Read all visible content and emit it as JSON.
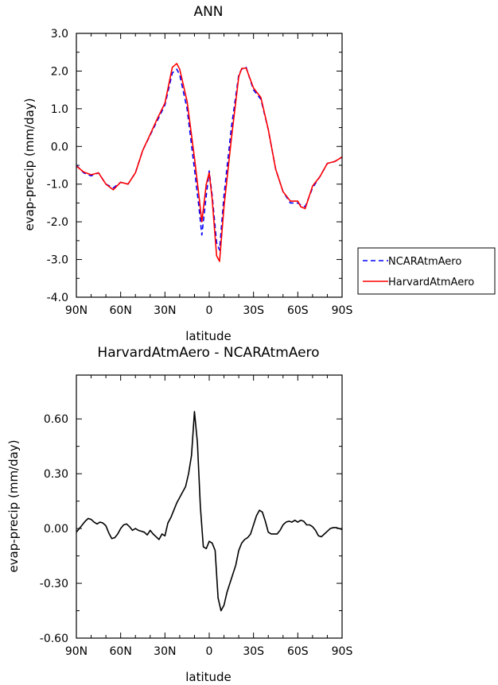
{
  "chart_data": [
    {
      "type": "line",
      "title": "ANN",
      "xlabel": "latitude",
      "ylabel": "evap-precip (mm/day)",
      "xlim": [
        90,
        -90
      ],
      "ylim": [
        -4.0,
        3.0
      ],
      "x_ticks": [
        {
          "value": 90,
          "label": "90N"
        },
        {
          "value": 60,
          "label": "60N"
        },
        {
          "value": 30,
          "label": "30N"
        },
        {
          "value": 0,
          "label": "0"
        },
        {
          "value": -30,
          "label": "30S"
        },
        {
          "value": -60,
          "label": "60S"
        },
        {
          "value": -90,
          "label": "90S"
        }
      ],
      "y_ticks": [
        {
          "value": 3.0,
          "label": "3.0"
        },
        {
          "value": 2.0,
          "label": "2.0"
        },
        {
          "value": 1.0,
          "label": "1.0"
        },
        {
          "value": 0.0,
          "label": "0.0"
        },
        {
          "value": -1.0,
          "label": "-1.0"
        },
        {
          "value": -2.0,
          "label": "-2.0"
        },
        {
          "value": -3.0,
          "label": "-3.0"
        },
        {
          "value": -4.0,
          "label": "-4.0"
        }
      ],
      "legend_position": "right-middle",
      "series": [
        {
          "name": "NCARAtmAero",
          "color": "#0000ff",
          "dash": "dashed",
          "x": [
            90,
            85,
            80,
            75,
            70,
            65,
            60,
            55,
            50,
            45,
            40,
            35,
            30,
            25,
            22,
            20,
            15,
            10,
            7,
            5,
            2,
            0,
            -2,
            -5,
            -7,
            -10,
            -15,
            -20,
            -22,
            -25,
            -30,
            -35,
            -40,
            -45,
            -50,
            -55,
            -60,
            -62,
            -65,
            -70,
            -75,
            -80,
            -85,
            -90
          ],
          "y": [
            -0.5,
            -0.7,
            -0.78,
            -0.7,
            -1.0,
            -1.1,
            -0.95,
            -1.0,
            -0.7,
            -0.1,
            0.3,
            0.7,
            1.1,
            1.95,
            2.05,
            1.9,
            1.0,
            -0.6,
            -1.6,
            -2.35,
            -1.3,
            -0.65,
            -1.3,
            -2.55,
            -2.75,
            -1.3,
            0.5,
            1.9,
            2.05,
            2.1,
            1.5,
            1.25,
            0.45,
            -0.6,
            -1.2,
            -1.5,
            -1.5,
            -1.55,
            -1.6,
            -1.1,
            -0.8,
            -0.45,
            -0.4,
            -0.28
          ]
        },
        {
          "name": "HarvardAtmAero",
          "color": "#ff0000",
          "dash": "solid",
          "x": [
            90,
            85,
            80,
            75,
            70,
            65,
            60,
            55,
            50,
            45,
            40,
            35,
            30,
            25,
            22,
            20,
            15,
            10,
            7,
            5,
            2,
            0,
            -2,
            -5,
            -7,
            -10,
            -15,
            -20,
            -22,
            -25,
            -30,
            -35,
            -40,
            -45,
            -50,
            -55,
            -60,
            -62,
            -65,
            -70,
            -75,
            -80,
            -85,
            -90
          ],
          "y": [
            -0.52,
            -0.68,
            -0.75,
            -0.7,
            -1.0,
            -1.15,
            -0.95,
            -1.0,
            -0.7,
            -0.1,
            0.32,
            0.75,
            1.15,
            2.1,
            2.2,
            2.05,
            1.2,
            -0.3,
            -1.3,
            -2.0,
            -1.0,
            -0.7,
            -1.4,
            -2.9,
            -3.05,
            -1.6,
            0.2,
            1.85,
            2.07,
            2.08,
            1.55,
            1.3,
            0.45,
            -0.6,
            -1.2,
            -1.45,
            -1.45,
            -1.6,
            -1.65,
            -1.05,
            -0.8,
            -0.45,
            -0.4,
            -0.28
          ]
        }
      ]
    },
    {
      "type": "line",
      "title": "HarvardAtmAero - NCARAtmAero",
      "xlabel": "latitude",
      "ylabel": "evap-precip (mm/day)",
      "xlim": [
        90,
        -90
      ],
      "ylim": [
        -0.6,
        0.84
      ],
      "x_ticks": [
        {
          "value": 90,
          "label": "90N"
        },
        {
          "value": 60,
          "label": "60N"
        },
        {
          "value": 30,
          "label": "30N"
        },
        {
          "value": 0,
          "label": "0"
        },
        {
          "value": -30,
          "label": "30S"
        },
        {
          "value": -60,
          "label": "60S"
        },
        {
          "value": -90,
          "label": "90S"
        }
      ],
      "y_ticks": [
        {
          "value": 0.6,
          "label": "0.60"
        },
        {
          "value": 0.3,
          "label": "0.30"
        },
        {
          "value": 0.0,
          "label": "0.00"
        },
        {
          "value": -0.3,
          "label": "-0.30"
        },
        {
          "value": -0.6,
          "label": "-0.60"
        }
      ],
      "series": [
        {
          "color": "#000000",
          "dash": "solid",
          "x": [
            90,
            88,
            86,
            84,
            82,
            80,
            78,
            76,
            74,
            72,
            70,
            68,
            66,
            64,
            62,
            60,
            58,
            56,
            54,
            52,
            50,
            48,
            46,
            44,
            42,
            40,
            38,
            36,
            34,
            32,
            30,
            28,
            26,
            24,
            22,
            20,
            18,
            16,
            14,
            12,
            10,
            8,
            6,
            4,
            2,
            0,
            -2,
            -4,
            -6,
            -8,
            -10,
            -12,
            -14,
            -16,
            -18,
            -20,
            -22,
            -24,
            -26,
            -28,
            -30,
            -32,
            -34,
            -36,
            -38,
            -40,
            -42,
            -44,
            -46,
            -48,
            -50,
            -52,
            -54,
            -56,
            -58,
            -60,
            -62,
            -64,
            -66,
            -68,
            -70,
            -72,
            -74,
            -76,
            -78,
            -80,
            -82,
            -84,
            -86,
            -88,
            -90
          ],
          "y": [
            -0.02,
            0.0,
            0.02,
            0.04,
            0.055,
            0.05,
            0.035,
            0.025,
            0.035,
            0.03,
            0.015,
            -0.025,
            -0.055,
            -0.05,
            -0.03,
            0.0,
            0.02,
            0.025,
            0.01,
            -0.01,
            0.0,
            -0.01,
            -0.015,
            -0.02,
            -0.035,
            -0.01,
            -0.03,
            -0.045,
            -0.06,
            -0.03,
            -0.04,
            0.03,
            0.06,
            0.1,
            0.14,
            0.17,
            0.2,
            0.23,
            0.3,
            0.4,
            0.64,
            0.47,
            0.12,
            -0.1,
            -0.11,
            -0.07,
            -0.08,
            -0.12,
            -0.38,
            -0.45,
            -0.42,
            -0.35,
            -0.3,
            -0.25,
            -0.2,
            -0.12,
            -0.08,
            -0.06,
            -0.05,
            -0.03,
            0.02,
            0.07,
            0.1,
            0.09,
            0.04,
            -0.02,
            -0.03,
            -0.03,
            -0.03,
            -0.01,
            0.02,
            0.035,
            0.04,
            0.035,
            0.045,
            0.035,
            0.045,
            0.04,
            0.02,
            0.02,
            0.01,
            -0.01,
            -0.04,
            -0.045,
            -0.03,
            -0.015,
            0.0,
            0.005,
            0.005,
            0.0,
            -0.005
          ]
        }
      ]
    }
  ]
}
